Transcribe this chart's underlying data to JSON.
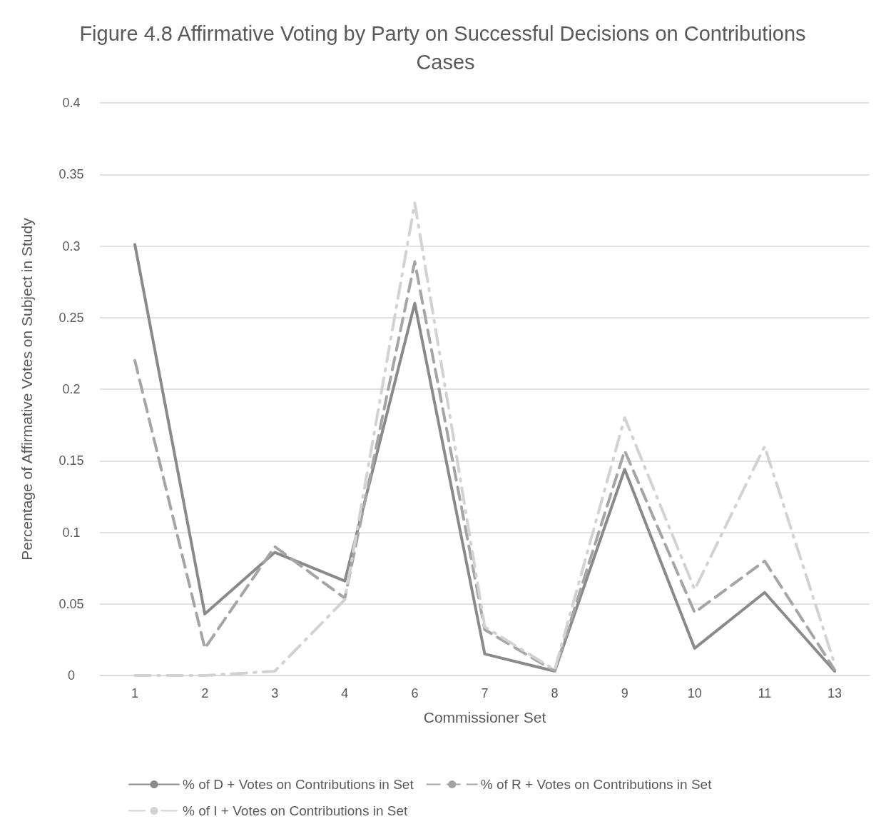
{
  "chart_data": {
    "type": "line",
    "title": "Figure 4.8 Affirmative Voting by Party on Successful Decisions on Contributions Cases",
    "xlabel": "Commissioner Set",
    "ylabel": "Percentage of Affirmative Votes on Subject in Study",
    "categories": [
      "1",
      "2",
      "3",
      "4",
      "6",
      "7",
      "8",
      "9",
      "10",
      "11",
      "13"
    ],
    "series": [
      {
        "name": "% of D + Votes on Contributions in Set",
        "color": "#8a8a8a",
        "line_style": "solid",
        "values": [
          0.301,
          0.043,
          0.086,
          0.066,
          0.26,
          0.015,
          0.003,
          0.144,
          0.019,
          0.058,
          0.003
        ]
      },
      {
        "name": "% of R + Votes on Contributions in Set",
        "color": "#a5a5a5",
        "line_style": "dashed",
        "values": [
          0.22,
          0.019,
          0.09,
          0.054,
          0.289,
          0.032,
          0.003,
          0.157,
          0.044,
          0.08,
          0.004
        ]
      },
      {
        "name": "% of I + Votes on Contributions in Set",
        "color": "#d2d2d2",
        "line_style": "dotted",
        "values": [
          0,
          0,
          0.003,
          0.053,
          0.33,
          0.034,
          0.004,
          0.18,
          0.06,
          0.16,
          0.008
        ]
      }
    ],
    "ylim": [
      0,
      0.4
    ],
    "yticks": [
      0,
      0.05,
      0.1,
      0.15,
      0.2,
      0.25,
      0.3,
      0.35,
      0.4
    ],
    "grid": "y",
    "legend": "bottom",
    "marker": "none"
  }
}
